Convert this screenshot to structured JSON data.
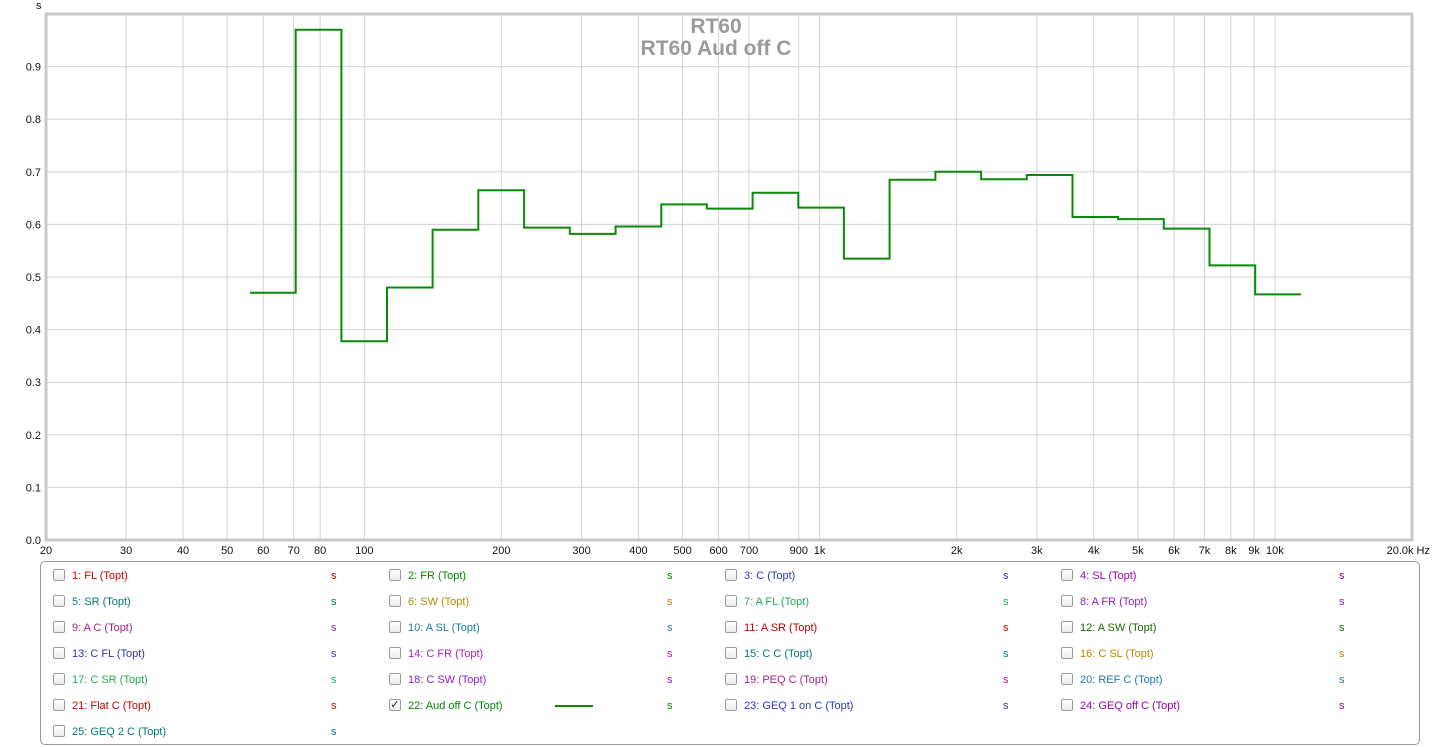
{
  "chart_data": {
    "type": "line",
    "title": "RT60",
    "subtitle": "RT60 Aud off C",
    "ylabel": "s",
    "xunit_label": "Hz",
    "x_scale": "log",
    "xlim": [
      20,
      20000
    ],
    "ylim": [
      0.0,
      1.0
    ],
    "grid": true,
    "yticks": [
      0.0,
      0.1,
      0.2,
      0.3,
      0.4,
      0.5,
      0.6,
      0.7,
      0.8,
      0.9
    ],
    "ytick_labels": [
      "0.0",
      "0.1",
      "0.2",
      "0.3",
      "0.4",
      "0.5",
      "0.6",
      "0.7",
      "0.8",
      "0.9"
    ],
    "xticks": [
      {
        "v": 20,
        "label": "20"
      },
      {
        "v": 30,
        "label": "30"
      },
      {
        "v": 40,
        "label": "40"
      },
      {
        "v": 50,
        "label": "50"
      },
      {
        "v": 60,
        "label": "60"
      },
      {
        "v": 70,
        "label": "70"
      },
      {
        "v": 80,
        "label": "80"
      },
      {
        "v": 100,
        "label": "100"
      },
      {
        "v": 200,
        "label": "200"
      },
      {
        "v": 300,
        "label": "300"
      },
      {
        "v": 400,
        "label": "400"
      },
      {
        "v": 500,
        "label": "500"
      },
      {
        "v": 600,
        "label": "600"
      },
      {
        "v": 700,
        "label": "700"
      },
      {
        "v": 900,
        "label": "900"
      },
      {
        "v": 1000,
        "label": "1k"
      },
      {
        "v": 2000,
        "label": "2k"
      },
      {
        "v": 3000,
        "label": "3k"
      },
      {
        "v": 4000,
        "label": "4k"
      },
      {
        "v": 5000,
        "label": "5k"
      },
      {
        "v": 6000,
        "label": "6k"
      },
      {
        "v": 7000,
        "label": "7k"
      },
      {
        "v": 8000,
        "label": "8k"
      },
      {
        "v": 9000,
        "label": "9k"
      },
      {
        "v": 10000,
        "label": "10k"
      },
      {
        "v": 20000,
        "label": "20.0k Hz"
      }
    ],
    "series": [
      {
        "name": "22: Aud off C (Topt)",
        "color": "#0a8a0a",
        "step_edges": [
          56.1,
          70.7,
          89.1,
          112.2,
          141.3,
          178.0,
          224.4,
          282.8,
          356.4,
          449.0,
          565.7,
          712.7,
          898.0,
          1131.0,
          1425.0,
          1796.0,
          2263.0,
          2851.0,
          3592.0,
          4525.0,
          5702.0,
          7184.0,
          9051.0,
          11404.0
        ],
        "values": [
          0.47,
          0.97,
          0.378,
          0.48,
          0.59,
          0.665,
          0.594,
          0.582,
          0.596,
          0.638,
          0.63,
          0.66,
          0.632,
          0.535,
          0.685,
          0.7,
          0.686,
          0.694,
          0.614,
          0.61,
          0.592,
          0.522,
          0.467
        ]
      }
    ]
  },
  "legend": {
    "items": [
      {
        "label": "1: FL (Topt)",
        "color": "#cc0000",
        "unit": "s",
        "checked": false
      },
      {
        "label": "2: FR (Topt)",
        "color": "#008800",
        "unit": "s",
        "checked": false
      },
      {
        "label": "3: C (Topt)",
        "color": "#3333bb",
        "unit": "s",
        "checked": false
      },
      {
        "label": "4: SL (Topt)",
        "color": "#9900aa",
        "unit": "s",
        "checked": false
      },
      {
        "label": "5: SR (Topt)",
        "color": "#007777",
        "unit": "s",
        "checked": false
      },
      {
        "label": "6: SW (Topt)",
        "color": "#bb8800",
        "unit": "s",
        "checked": false
      },
      {
        "label": "7: A FL (Topt)",
        "color": "#22aa55",
        "unit": "s",
        "checked": false
      },
      {
        "label": "8: A FR (Topt)",
        "color": "#8822cc",
        "unit": "s",
        "checked": false
      },
      {
        "label": "9: A C (Topt)",
        "color": "#aa2288",
        "unit": "s",
        "checked": false
      },
      {
        "label": "10: A SL (Topt)",
        "color": "#2277aa",
        "unit": "s",
        "checked": false
      },
      {
        "label": "11: A SR (Topt)",
        "color": "#bb0000",
        "unit": "s",
        "checked": false
      },
      {
        "label": "12: A SW (Topt)",
        "color": "#226600",
        "unit": "s",
        "checked": false
      },
      {
        "label": "13: C FL (Topt)",
        "color": "#3333aa",
        "unit": "s",
        "checked": false
      },
      {
        "label": "14: C FR (Topt)",
        "color": "#aa22aa",
        "unit": "s",
        "checked": false
      },
      {
        "label": "15: C C (Topt)",
        "color": "#007777",
        "unit": "s",
        "checked": false
      },
      {
        "label": "16: C SL (Topt)",
        "color": "#bb8800",
        "unit": "s",
        "checked": false
      },
      {
        "label": "17: C SR (Topt)",
        "color": "#22aa55",
        "unit": "s",
        "checked": false
      },
      {
        "label": "18: C SW (Topt)",
        "color": "#8822cc",
        "unit": "s",
        "checked": false
      },
      {
        "label": "19: PEQ C (Topt)",
        "color": "#aa2288",
        "unit": "s",
        "checked": false
      },
      {
        "label": "20: REF C (Topt)",
        "color": "#2277aa",
        "unit": "s",
        "checked": false
      },
      {
        "label": "21: Flat C (Topt)",
        "color": "#cc0000",
        "unit": "s",
        "checked": false
      },
      {
        "label": "22: Aud off C (Topt)",
        "color": "#008800",
        "unit": "s",
        "checked": true,
        "check_mark": "✓"
      },
      {
        "label": "23: GEQ 1 on C (Topt)",
        "color": "#3333bb",
        "unit": "s",
        "checked": false
      },
      {
        "label": "24: GEQ off C (Topt)",
        "color": "#9900aa",
        "unit": "s",
        "checked": false
      },
      {
        "label": "25: GEQ 2 C (Topt)",
        "color": "#007777",
        "unit": "s",
        "checked": false
      }
    ]
  }
}
